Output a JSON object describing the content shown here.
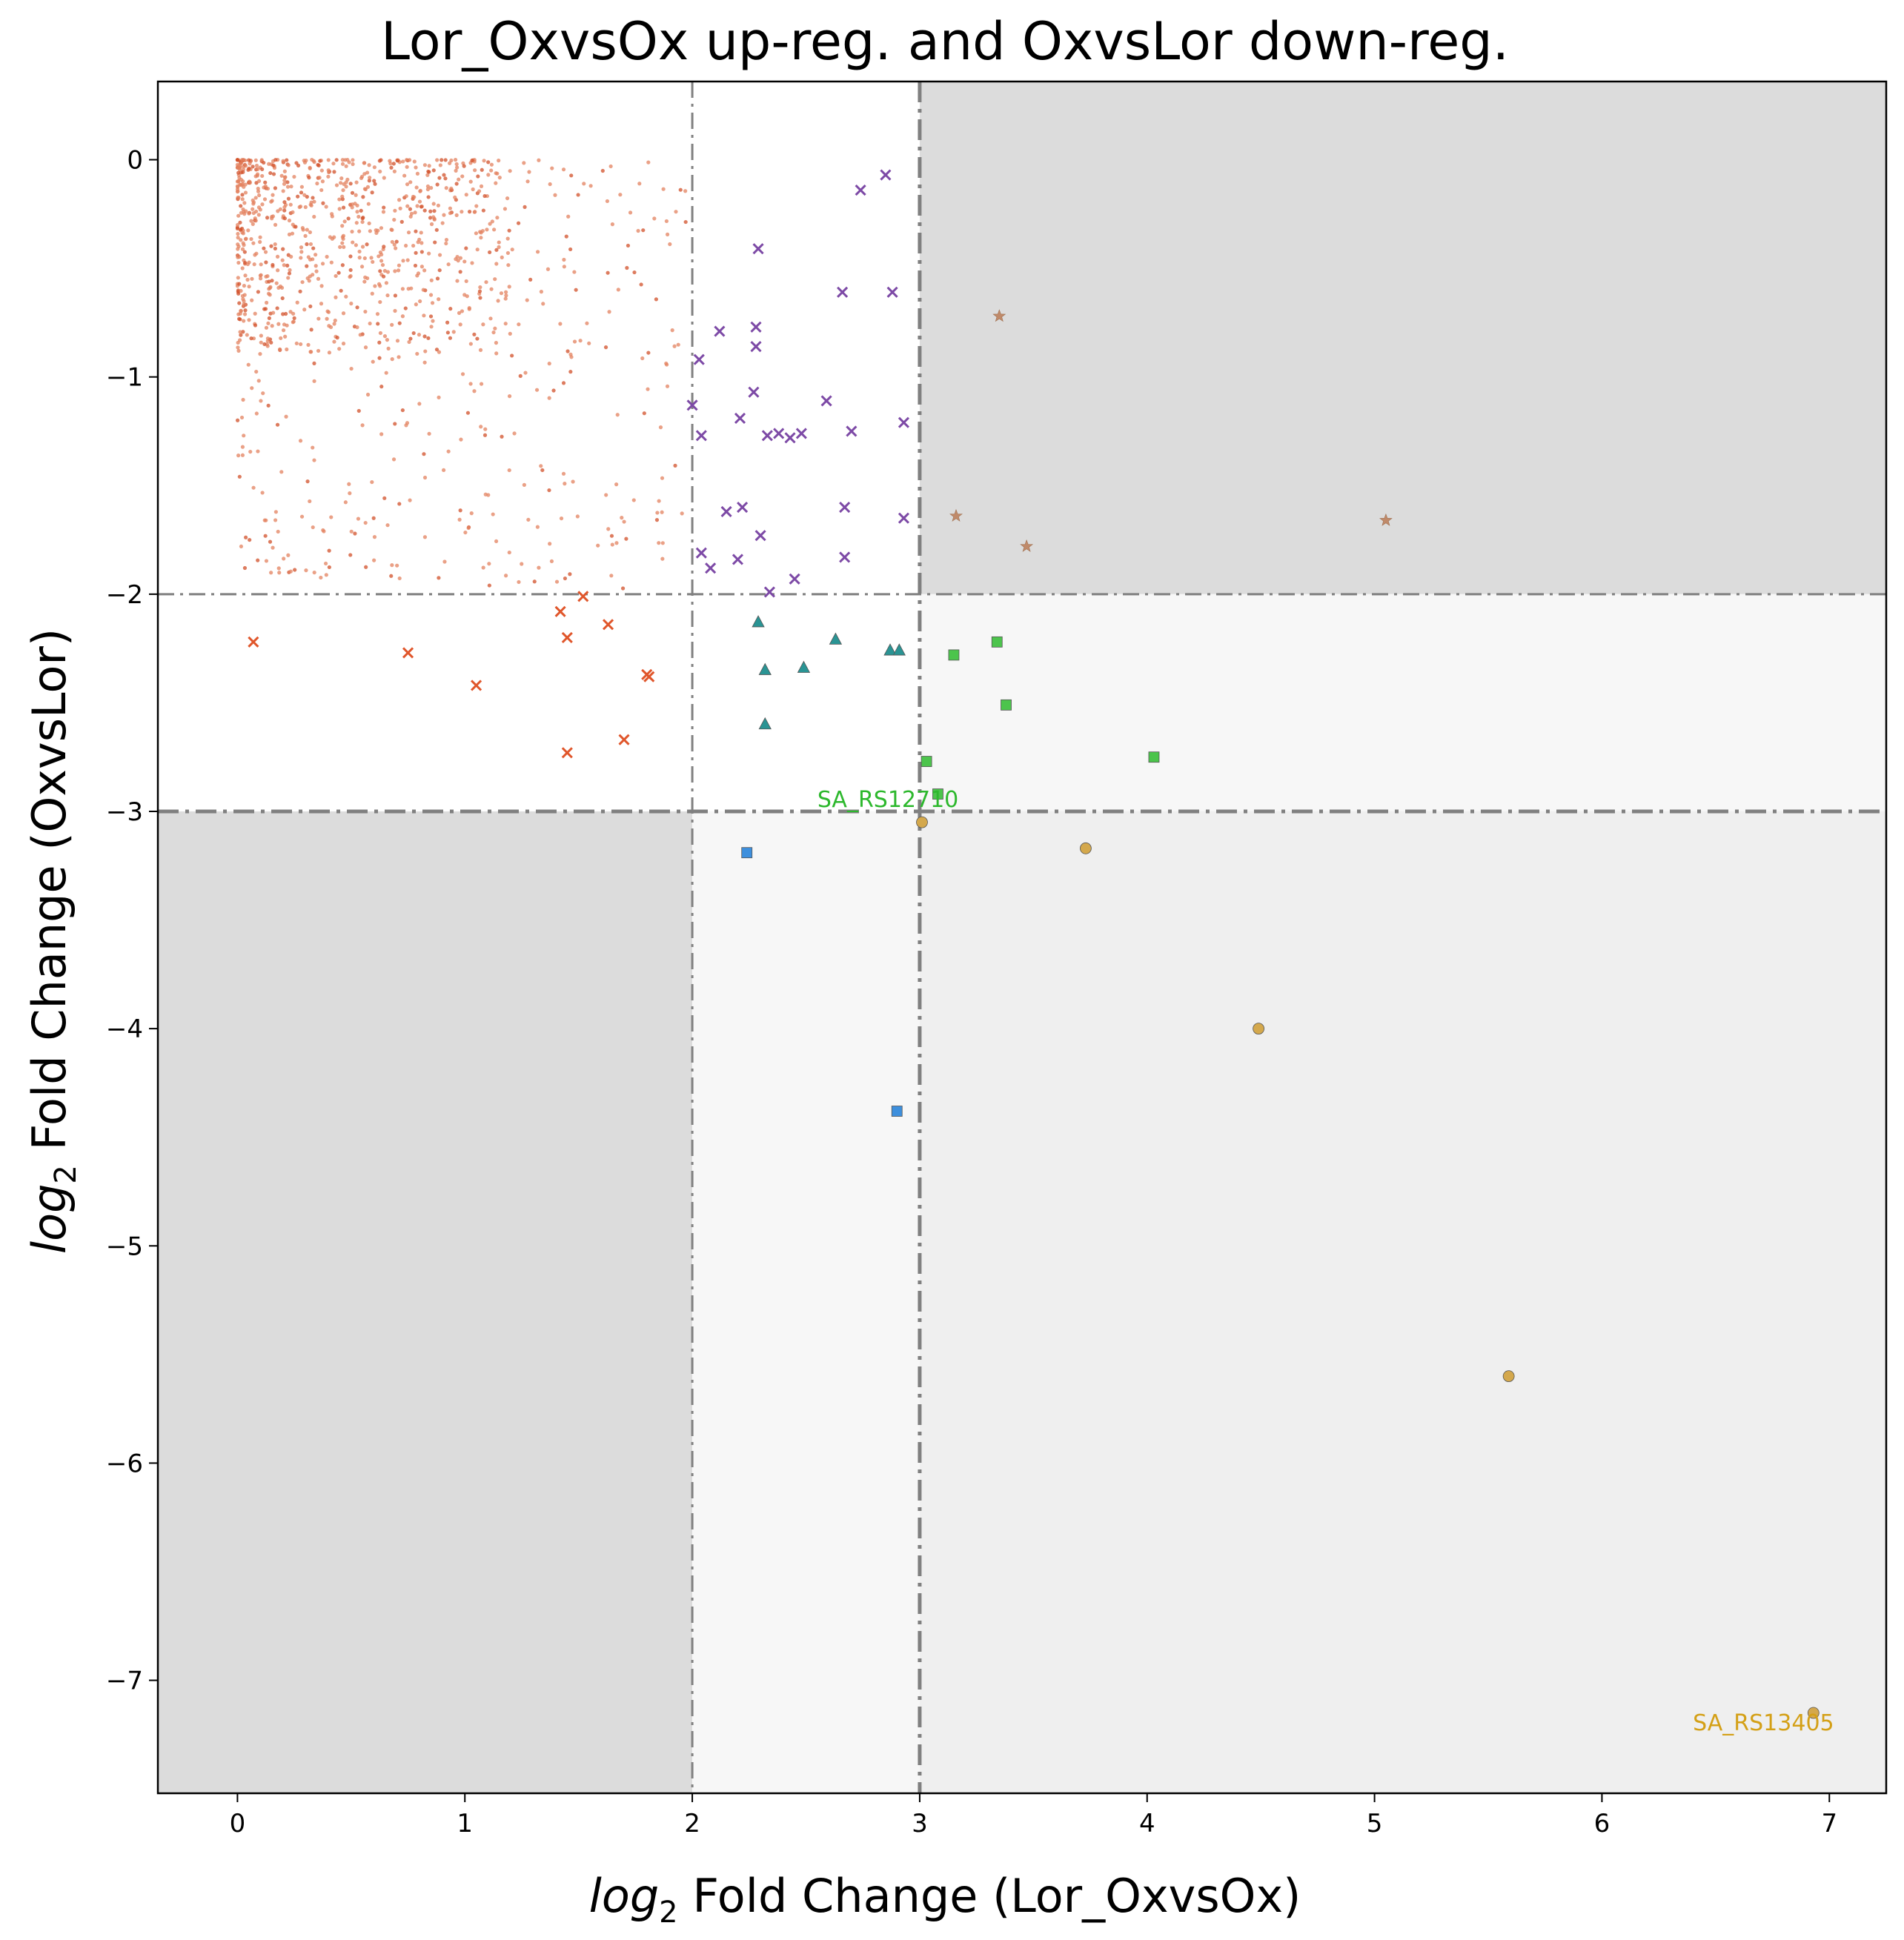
{
  "chart_data": {
    "type": "scatter",
    "title": "Lor_OxvsOx up-reg. and OxvsLor down-reg.",
    "xlabel_prefix": "log",
    "xlabel_sub": "2",
    "xlabel_suffix": " Fold Change (Lor_OxvsOx)",
    "ylabel_prefix": "log",
    "ylabel_sub": "2",
    "ylabel_suffix": " Fold Change (OxvsLor)",
    "xlim": [
      -0.35,
      7.25
    ],
    "ylim": [
      -7.52,
      0.36
    ],
    "xticks": [
      0,
      1,
      2,
      3,
      4,
      5,
      6,
      7
    ],
    "yticks": [
      0,
      -1,
      -2,
      -3,
      -4,
      -5,
      -6,
      -7
    ],
    "xtick_labels": [
      "0",
      "1",
      "2",
      "3",
      "4",
      "5",
      "6",
      "7"
    ],
    "ytick_labels": [
      "0",
      "−1",
      "−2",
      "−3",
      "−4",
      "−5",
      "−6",
      "−7"
    ],
    "grid": false,
    "shaded_regions": [
      {
        "x": [
          3,
          7.25
        ],
        "y": [
          -2,
          0.36
        ],
        "color": "#dcdcdc"
      },
      {
        "x": [
          -0.35,
          2
        ],
        "y": [
          -7.52,
          -3
        ],
        "color": "#dcdcdc"
      },
      {
        "x": [
          3,
          7.25
        ],
        "y": [
          -3,
          -2
        ],
        "color": "#f7f7f7"
      },
      {
        "x": [
          2,
          3
        ],
        "y": [
          -7.52,
          -3
        ],
        "color": "#f7f7f7"
      },
      {
        "x": [
          3,
          7.25
        ],
        "y": [
          -7.52,
          -3
        ],
        "color": "#efefef"
      }
    ],
    "reference_lines": [
      {
        "axis": "x",
        "value": 2,
        "style": "dashdot",
        "weight": "thin"
      },
      {
        "axis": "x",
        "value": 3,
        "style": "dashdot",
        "weight": "thick"
      },
      {
        "axis": "y",
        "value": -2,
        "style": "dashdot",
        "weight": "thin"
      },
      {
        "axis": "y",
        "value": -3,
        "style": "dashdot",
        "weight": "thick"
      }
    ],
    "series": [
      {
        "marker": "x",
        "color": "#e0562b",
        "points": [
          [
            0.07,
            -2.22
          ],
          [
            0.75,
            -2.27
          ],
          [
            1.05,
            -2.42
          ],
          [
            1.42,
            -2.08
          ],
          [
            1.45,
            -2.2
          ],
          [
            1.52,
            -2.01
          ],
          [
            1.63,
            -2.14
          ],
          [
            1.8,
            -2.37
          ],
          [
            1.81,
            -2.38
          ],
          [
            1.7,
            -2.67
          ],
          [
            1.45,
            -2.73
          ]
        ]
      },
      {
        "marker": "x",
        "color": "#7d4aa6",
        "points": [
          [
            2.03,
            -0.92
          ],
          [
            2.12,
            -0.79
          ],
          [
            2.29,
            -0.41
          ],
          [
            2.28,
            -0.77
          ],
          [
            2.28,
            -0.86
          ],
          [
            2.27,
            -1.07
          ],
          [
            2.0,
            -1.13
          ],
          [
            2.04,
            -1.27
          ],
          [
            2.21,
            -1.19
          ],
          [
            2.33,
            -1.27
          ],
          [
            2.38,
            -1.26
          ],
          [
            2.43,
            -1.28
          ],
          [
            2.48,
            -1.26
          ],
          [
            2.59,
            -1.11
          ],
          [
            2.66,
            -0.61
          ],
          [
            2.7,
            -1.25
          ],
          [
            2.74,
            -0.14
          ],
          [
            2.85,
            -0.07
          ],
          [
            2.88,
            -0.61
          ],
          [
            2.93,
            -1.21
          ],
          [
            2.93,
            -1.65
          ],
          [
            2.15,
            -1.62
          ],
          [
            2.22,
            -1.6
          ],
          [
            2.3,
            -1.73
          ],
          [
            2.04,
            -1.81
          ],
          [
            2.08,
            -1.88
          ],
          [
            2.2,
            -1.84
          ],
          [
            2.34,
            -1.99
          ],
          [
            2.45,
            -1.93
          ],
          [
            2.67,
            -1.6
          ],
          [
            2.67,
            -1.83
          ]
        ]
      },
      {
        "marker": "star",
        "color": "#c08a6a",
        "points": [
          [
            3.35,
            -0.72
          ],
          [
            3.16,
            -1.64
          ],
          [
            3.47,
            -1.78
          ],
          [
            5.05,
            -1.66
          ]
        ]
      },
      {
        "marker": "triangle",
        "color": "#2a9494",
        "points": [
          [
            2.29,
            -2.13
          ],
          [
            2.32,
            -2.35
          ],
          [
            2.49,
            -2.34
          ],
          [
            2.63,
            -2.21
          ],
          [
            2.87,
            -2.26
          ],
          [
            2.91,
            -2.26
          ],
          [
            2.32,
            -2.6
          ]
        ]
      },
      {
        "marker": "square",
        "color": "#4cc44c",
        "points": [
          [
            3.15,
            -2.28
          ],
          [
            3.34,
            -2.22
          ],
          [
            3.38,
            -2.51
          ],
          [
            3.03,
            -2.77
          ],
          [
            4.03,
            -2.75
          ],
          [
            3.08,
            -2.92
          ]
        ]
      },
      {
        "marker": "square",
        "color": "#3d8fdd",
        "points": [
          [
            2.24,
            -3.19
          ],
          [
            2.9,
            -4.38
          ]
        ]
      },
      {
        "marker": "circle",
        "color": "#d4a84c",
        "points": [
          [
            3.01,
            -3.05
          ],
          [
            3.73,
            -3.17
          ],
          [
            4.49,
            -4.0
          ],
          [
            5.59,
            -5.6
          ],
          [
            6.93,
            -7.15
          ]
        ]
      }
    ],
    "background_cloud": {
      "marker": "dot",
      "color": "#e3825f",
      "density_note": "many non-significant genes with x from 0 to 2 and y from -2 to 0"
    },
    "annotations": [
      {
        "text": "SA_RS12710",
        "x": 2.55,
        "y": -2.98,
        "color": "#2db82d"
      },
      {
        "text": "SA_RS13405",
        "x": 6.4,
        "y": -7.23,
        "color": "#d4a017"
      }
    ]
  }
}
